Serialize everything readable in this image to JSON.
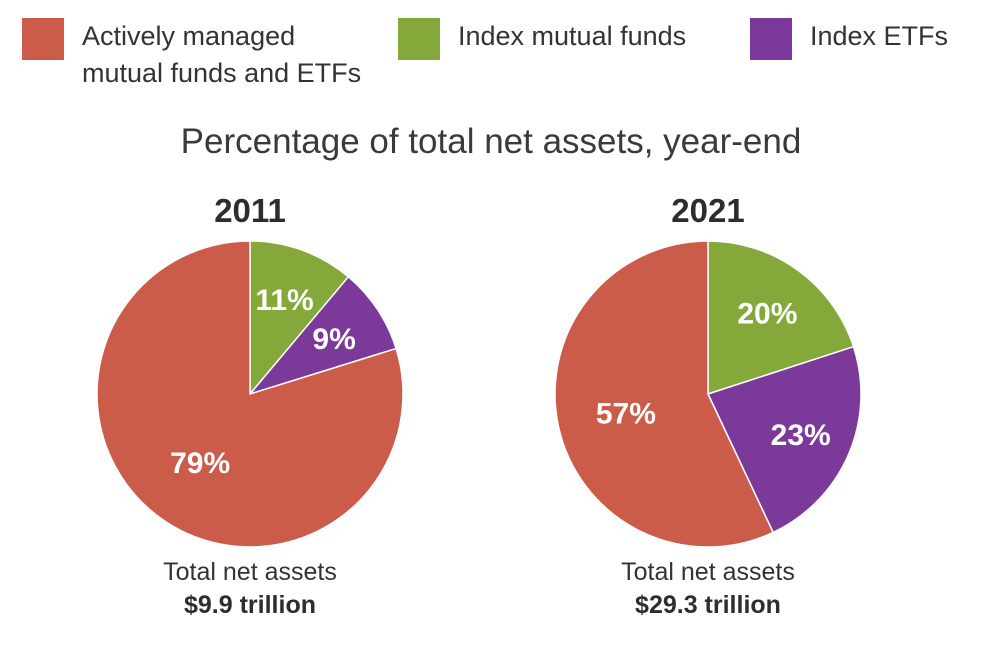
{
  "legend": [
    {
      "label_line1": "Actively managed",
      "label_line2": "mutual funds and ETFs",
      "color": "#cc5c4a"
    },
    {
      "label_line1": "Index mutual funds",
      "label_line2": "",
      "color": "#84a83a"
    },
    {
      "label_line1": "Index ETFs",
      "label_line2": "",
      "color": "#7b3a9a"
    }
  ],
  "title": "Percentage of total net assets, year-end",
  "chart_data": [
    {
      "type": "pie",
      "title": "2011",
      "slices": [
        {
          "name": "Index mutual funds",
          "value": 11,
          "label": "11%",
          "color": "#84a83a"
        },
        {
          "name": "Index ETFs",
          "value": 9,
          "label": "9%",
          "color": "#7b3a9a"
        },
        {
          "name": "Actively managed mutual funds and ETFs",
          "value": 79,
          "label": "79%",
          "color": "#cc5c4a"
        }
      ],
      "footer_line1": "Total net assets",
      "footer_line2": "$9.9 trillion"
    },
    {
      "type": "pie",
      "title": "2021",
      "slices": [
        {
          "name": "Index mutual funds",
          "value": 20,
          "label": "20%",
          "color": "#84a83a"
        },
        {
          "name": "Index ETFs",
          "value": 23,
          "label": "23%",
          "color": "#7b3a9a"
        },
        {
          "name": "Actively managed mutual funds and ETFs",
          "value": 57,
          "label": "57%",
          "color": "#cc5c4a"
        }
      ],
      "footer_line1": "Total net assets",
      "footer_line2": "$29.3 trillion"
    }
  ]
}
